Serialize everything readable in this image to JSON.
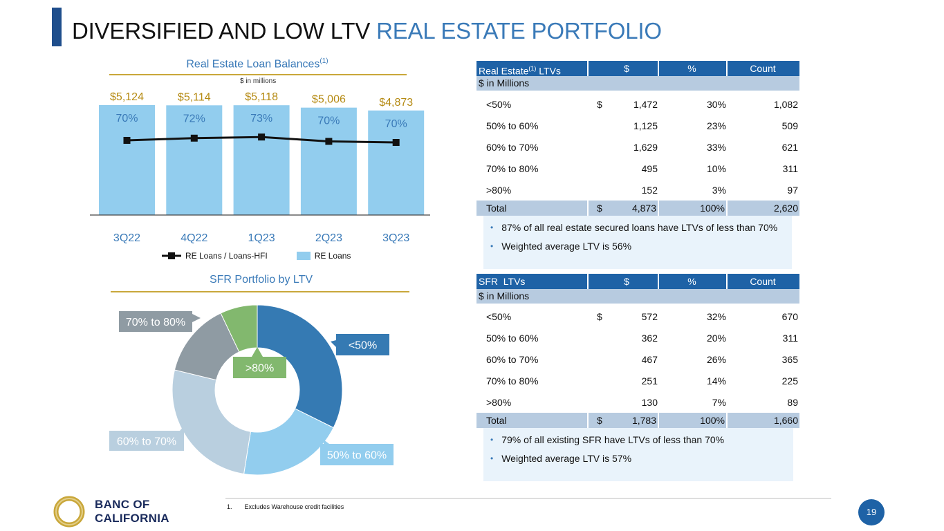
{
  "header": {
    "title_dark": "DIVERSIFIED AND LOW LTV",
    "title_blue": "REAL ESTATE PORTFOLIO"
  },
  "bar_section": {
    "title": "Real Estate Loan Balances",
    "title_sup": "(1)",
    "unit_note": "$ in millions",
    "legend_line": "RE Loans / Loans-HFI",
    "legend_bar": "RE Loans"
  },
  "pie_section": {
    "title": "SFR Portfolio by LTV"
  },
  "re_table": {
    "header": [
      "Real Estate",
      "(1)",
      " LTVs",
      "$",
      "%",
      "Count"
    ],
    "sub": "$ in Millions",
    "rows": [
      {
        "label": "<50%",
        "cur": "$",
        "amt": "1,472",
        "pct": "30%",
        "count": "1,082"
      },
      {
        "label": "50% to 60%",
        "cur": "",
        "amt": "1,125",
        "pct": "23%",
        "count": "509"
      },
      {
        "label": "60% to 70%",
        "cur": "",
        "amt": "1,629",
        "pct": "33%",
        "count": "621"
      },
      {
        "label": "70% to 80%",
        "cur": "",
        "amt": "495",
        "pct": "10%",
        "count": "311"
      },
      {
        "label": ">80%",
        "cur": "",
        "amt": "152",
        "pct": "3%",
        "count": "97"
      }
    ],
    "total": {
      "label": "Total",
      "cur": "$",
      "amt": "4,873",
      "pct": "100%",
      "count": "2,620"
    },
    "notes": [
      "87% of all real estate secured loans have LTVs of less than 70%",
      "Weighted average LTV is 56%"
    ]
  },
  "sfr_table": {
    "header": [
      "SFR  LTVs",
      "$",
      "%",
      "Count"
    ],
    "sub": "$ in Millions",
    "rows": [
      {
        "label": "<50%",
        "cur": "$",
        "amt": "572",
        "pct": "32%",
        "count": "670"
      },
      {
        "label": "50% to 60%",
        "cur": "",
        "amt": "362",
        "pct": "20%",
        "count": "311"
      },
      {
        "label": "60% to 70%",
        "cur": "",
        "amt": "467",
        "pct": "26%",
        "count": "365"
      },
      {
        "label": "70% to 80%",
        "cur": "",
        "amt": "251",
        "pct": "14%",
        "count": "225"
      },
      {
        "label": ">80%",
        "cur": "",
        "amt": "130",
        "pct": "7%",
        "count": "89"
      }
    ],
    "total": {
      "label": "Total",
      "cur": "$",
      "amt": "1,783",
      "pct": "100%",
      "count": "1,660"
    },
    "notes": [
      "79% of all existing SFR have LTVs of less than 70%",
      "Weighted average LTV is 57%"
    ]
  },
  "footer": {
    "footnote_num": "1.",
    "footnote_text": "Excludes Warehouse credit facilities",
    "page": "19",
    "logo_line1": "BANC OF",
    "logo_line2": "CALIFORNIA"
  },
  "colors": {
    "bar": "#92cdee",
    "line": "#111111",
    "bar_value_label": "#b58a12",
    "pct_label": "#3a7ab8",
    "pie": [
      "#357ab3",
      "#92cdee",
      "#b9cfdf",
      "#8f9ba3",
      "#82b86e"
    ]
  },
  "chart_data": [
    {
      "type": "bar",
      "title": "Real Estate Loan Balances(1)",
      "subtitle": "$ in millions",
      "categories": [
        "3Q22",
        "4Q22",
        "1Q23",
        "2Q23",
        "3Q23"
      ],
      "series": [
        {
          "name": "RE Loans",
          "type": "bar",
          "values": [
            5124,
            5114,
            5118,
            5006,
            4873
          ],
          "labels": [
            "$5,124",
            "$5,114",
            "$5,118",
            "$5,006",
            "$4,873"
          ]
        },
        {
          "name": "RE Loans / Loans-HFI",
          "type": "line",
          "values": [
            70,
            72,
            73,
            70,
            70
          ],
          "labels": [
            "70%",
            "72%",
            "73%",
            "70%",
            "70%"
          ]
        }
      ],
      "legend": "bottom"
    },
    {
      "type": "pie",
      "title": "SFR Portfolio by LTV",
      "donut": true,
      "categories": [
        "<50%",
        "50% to 60%",
        "60% to 70%",
        "70% to 80%",
        ">80%"
      ],
      "values": [
        32,
        20,
        26,
        14,
        7
      ]
    }
  ]
}
